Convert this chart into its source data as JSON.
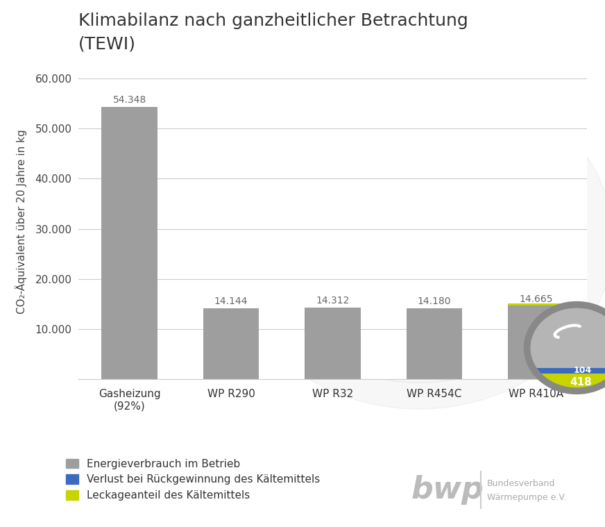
{
  "title": "Klimabilanz nach ganzheitlicher Betrachtung\n(TEWI)",
  "categories": [
    "Gasheizung\n(92%)",
    "WP R290",
    "WP R32",
    "WP R454C",
    "WP R410A"
  ],
  "energy_values": [
    54348,
    14144,
    14312,
    14180,
    14665
  ],
  "loss_values": [
    0,
    0,
    0,
    0,
    104
  ],
  "leakage_values": [
    0,
    0,
    0,
    0,
    418
  ],
  "bar_color_gray": "#9e9e9e",
  "bar_color_blue": "#3a6bbf",
  "bar_color_yellow": "#c8d400",
  "ylabel": "CO₂-Äquivalent über 20 Jahre in kg",
  "ylim": [
    0,
    63000
  ],
  "yticks": [
    0,
    10000,
    20000,
    30000,
    40000,
    50000,
    60000
  ],
  "ytick_labels": [
    "",
    "10.000",
    "20.000",
    "30.000",
    "40.000",
    "50.000",
    "60.000"
  ],
  "legend_labels": [
    "Energieverbrauch im Betrieb",
    "Verlust bei Rückgewinnung des Kältemittels",
    "Leckageanteil des Kältemittels"
  ],
  "bar_labels": [
    "54.348",
    "14.144",
    "14.312",
    "14.180",
    "14.665"
  ],
  "magnifier_label_blue": "104",
  "magnifier_label_yellow": "418",
  "background_color": "#ffffff",
  "grid_color": "#cccccc",
  "title_fontsize": 18,
  "label_fontsize": 11,
  "tick_fontsize": 11,
  "bar_label_fontsize": 10,
  "watermark_color": "#e8e8e8"
}
